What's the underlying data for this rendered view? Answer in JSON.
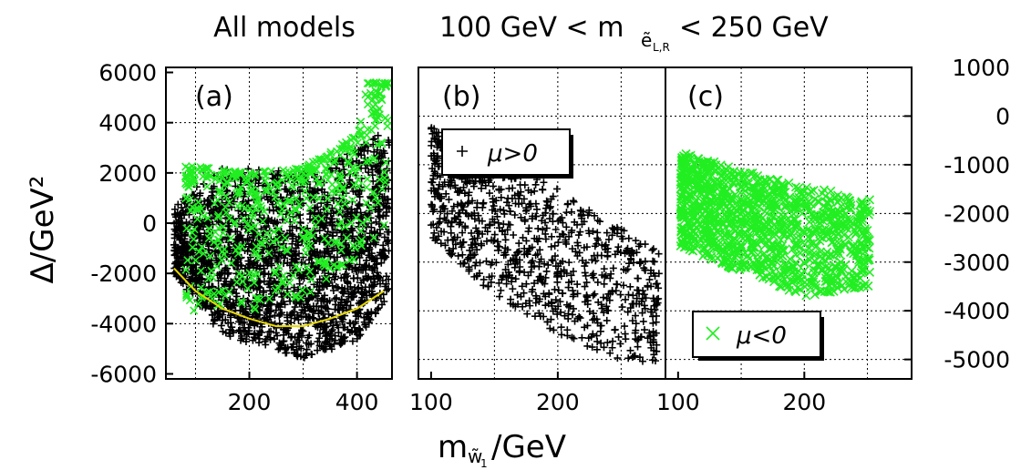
{
  "titles": {
    "left": "All models",
    "right_prefix": "100 GeV < m",
    "right_sub": "ẽ",
    "right_subsub": "L,R",
    "right_suffix": "< 250 GeV"
  },
  "axes": {
    "ylabel": "Δ/GeV²",
    "xlabel_main": "m",
    "xlabel_sub": "w̃",
    "xlabel_subsub": "1",
    "xlabel_suffix": "/GeV"
  },
  "colors": {
    "positive_mu": "#000000",
    "negative_mu": "#22ee22",
    "fit_curve": "#e8d800",
    "grid": "#000000"
  },
  "chart_data": [
    {
      "panel": "(a)",
      "type": "scatter",
      "xlim": [
        45,
        465
      ],
      "ylim": [
        -6200,
        6200
      ],
      "xticks": [
        200,
        400
      ],
      "yticks": [
        -6000,
        -4000,
        -2000,
        0,
        2000,
        4000,
        6000
      ],
      "grid": true,
      "series": [
        {
          "marker": "+",
          "region": "dense band, mu>0",
          "x_range": [
            60,
            460
          ],
          "y_upper_at_x": {
            "60": 700,
            "150": 2300,
            "300": 2000,
            "400": 3000,
            "460": 3800
          },
          "y_lower_at_x": {
            "60": -2000,
            "150": -4500,
            "300": -5400,
            "400": -4700,
            "460": -3000
          }
        },
        {
          "marker": "x",
          "region": "mu<0 points, upper edge",
          "x_range": [
            80,
            460
          ],
          "y_upper_at_x": {
            "80": 2300,
            "200": 2000,
            "300": 2200,
            "400": 3500,
            "420": 5600
          },
          "y_lower_at_x": {
            "80": -3500,
            "200": -3500,
            "300": -3000,
            "400": -1500,
            "460": 0
          }
        }
      ],
      "fit_curve": {
        "x": [
          60,
          100,
          150,
          200,
          250,
          300,
          350,
          400,
          450
        ],
        "y": [
          -1800,
          -2700,
          -3400,
          -3800,
          -4100,
          -4100,
          -3800,
          -3400,
          -2700
        ]
      }
    },
    {
      "panel": "(b)",
      "type": "scatter",
      "legend": "μ>0",
      "legend_marker": "+",
      "xlim": [
        90,
        285
      ],
      "ylim": [
        -5400,
        1000
      ],
      "xticks": [
        100,
        200
      ],
      "grid": true,
      "series": [
        {
          "marker": "+",
          "trend_x": [
            100,
            150,
            200,
            250,
            280
          ],
          "trend_y_upper": [
            -200,
            -700,
            -1500,
            -2300,
            -2800
          ],
          "trend_y_lower": [
            -2500,
            -3700,
            -4500,
            -5000,
            -5200
          ]
        }
      ]
    },
    {
      "panel": "(c)",
      "type": "scatter",
      "legend": "μ<0",
      "legend_marker": "x",
      "xlim": [
        90,
        285
      ],
      "ylim": [
        -5400,
        1000
      ],
      "xticks": [
        100,
        200
      ],
      "yticks_right": [
        1000,
        0,
        -1000,
        -2000,
        -3000,
        -4000,
        -5000
      ],
      "grid": true,
      "series": [
        {
          "marker": "x",
          "trend_x": [
            100,
            150,
            200,
            250
          ],
          "trend_y_upper": [
            -700,
            -1100,
            -1400,
            -1700
          ],
          "trend_y_lower": [
            -2700,
            -3200,
            -3700,
            -3500
          ]
        }
      ]
    }
  ]
}
